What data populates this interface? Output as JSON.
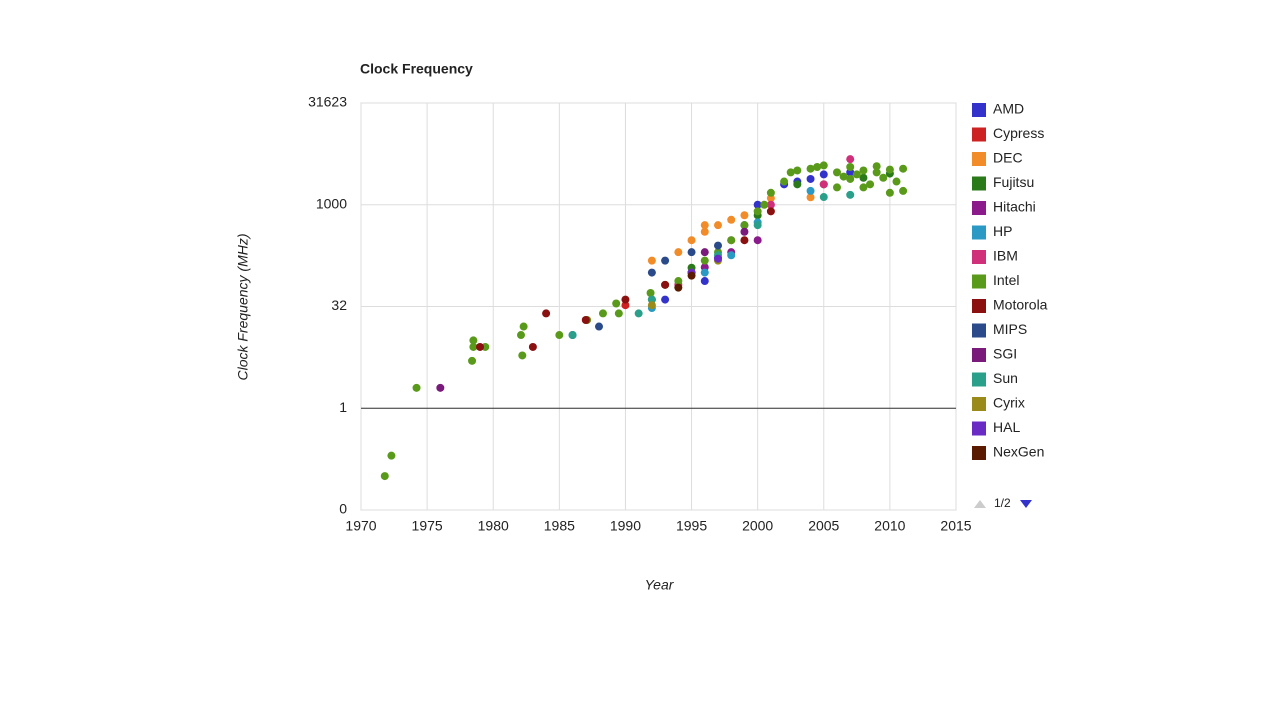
{
  "chart_data": {
    "type": "scatter",
    "title": "Clock Frequency",
    "x_label": "Year",
    "y_label": "Clock Frequency (MHz)",
    "xlim": [
      1970,
      2015
    ],
    "xticks": [
      1970,
      1975,
      1980,
      1985,
      1990,
      1995,
      2000,
      2005,
      2010,
      2015
    ],
    "ylim": [
      0.0316,
      31623
    ],
    "yticks": [
      {
        "value": 0.0316,
        "label": "0"
      },
      1,
      {
        "value": 31.62,
        "label": "32"
      },
      1000,
      31623
    ],
    "log_y": true,
    "grid": true,
    "baseline": 1,
    "legend_page": "1/2",
    "series": [
      {
        "name": "AMD",
        "color": "#3333cc",
        "x": [
          1993,
          1995,
          1996,
          1997,
          1999,
          2000,
          2002,
          2003,
          2004,
          2005,
          2007
        ],
        "values": [
          40,
          100,
          75,
          166,
          500,
          1000,
          2000,
          2200,
          2400,
          2800,
          3000
        ]
      },
      {
        "name": "Cypress",
        "color": "#cc2222",
        "x": [
          1990,
          1992
        ],
        "values": [
          33,
          40
        ]
      },
      {
        "name": "DEC",
        "color": "#f28c28",
        "x": [
          1992,
          1994,
          1995,
          1996,
          1996,
          1997,
          1998,
          1999,
          2001,
          2004
        ],
        "values": [
          150,
          200,
          300,
          500,
          400,
          500,
          600,
          700,
          1250,
          1290
        ]
      },
      {
        "name": "Fujitsu",
        "color": "#2a7a1a",
        "x": [
          1995,
          2000,
          2003,
          2005,
          2008,
          2010
        ],
        "values": [
          118,
          700,
          2000,
          2000,
          2500,
          2880
        ]
      },
      {
        "name": "Hitachi",
        "color": "#8b1a8b",
        "x": [
          1996,
          1998,
          2000
        ],
        "values": [
          120,
          200,
          300
        ]
      },
      {
        "name": "HP",
        "color": "#2a9ac4",
        "x": [
          1992,
          1996,
          1998,
          2000,
          2004
        ],
        "values": [
          30,
          100,
          180,
          550,
          1600
        ]
      },
      {
        "name": "IBM",
        "color": "#d0307a",
        "x": [
          1994,
          1998,
          2001,
          2005,
          2007
        ],
        "values": [
          66,
          300,
          1000,
          2000,
          4700
        ]
      },
      {
        "name": "Intel",
        "color": "#5a9a1a",
        "x": [
          1971.8,
          1972.3,
          1974.2,
          1978.4,
          1978.5,
          1978.5,
          1979.4,
          1982.1,
          1982.2,
          1982.3,
          1985,
          1987.1,
          1988.3,
          1989.3,
          1989.5,
          1991.9,
          1993,
          1994,
          1995,
          1996,
          1997,
          1998,
          1999,
          2000,
          2000.5,
          2001,
          2002,
          2002.5,
          2003,
          2004,
          2004.5,
          2005,
          2006,
          2006.5,
          2007,
          2007.5,
          2008,
          2008.5,
          2009,
          2009.5,
          2010,
          2010.5,
          2011,
          2011,
          2008,
          2006,
          2007,
          2009,
          2010
        ],
        "values": [
          0.1,
          0.2,
          2,
          5,
          10,
          8,
          8,
          12,
          6,
          16,
          12,
          20,
          25,
          35,
          25,
          50,
          66,
          75,
          100,
          150,
          200,
          300,
          500,
          800,
          1000,
          1500,
          2200,
          3000,
          3200,
          3400,
          3600,
          3800,
          3000,
          2600,
          2400,
          2800,
          3200,
          2000,
          3000,
          2500,
          3300,
          2200,
          3400,
          1600,
          1800,
          1800,
          3600,
          3700,
          1500
        ]
      },
      {
        "name": "Motorola",
        "color": "#8b1010",
        "x": [
          1979,
          1983,
          1984,
          1987,
          1990,
          1993,
          1995,
          1999,
          2001
        ],
        "values": [
          8,
          8,
          25,
          20,
          40,
          66,
          100,
          300,
          800
        ]
      },
      {
        "name": "MIPS",
        "color": "#2a4a8a",
        "x": [
          1986,
          1988,
          1992,
          1993,
          1995,
          1997
        ],
        "values": [
          12,
          16,
          100,
          150,
          200,
          250
        ]
      },
      {
        "name": "SGI",
        "color": "#7a1a7a",
        "x": [
          1976,
          1996,
          1999
        ],
        "values": [
          2,
          200,
          400
        ]
      },
      {
        "name": "Sun",
        "color": "#2aa08a",
        "x": [
          1986,
          1991,
          1992,
          1995,
          1997,
          2000,
          2005,
          2007
        ],
        "values": [
          12,
          25,
          40,
          100,
          180,
          500,
          1300,
          1400
        ]
      },
      {
        "name": "Cyrix",
        "color": "#9a8a1a",
        "x": [
          1992,
          1995,
          1997
        ],
        "values": [
          33,
          100,
          150
        ]
      },
      {
        "name": "HAL",
        "color": "#6a2ac4",
        "x": [
          1995,
          1997
        ],
        "values": [
          100,
          160
        ]
      },
      {
        "name": "NexGen",
        "color": "#5a1a00",
        "x": [
          1994,
          1995
        ],
        "values": [
          60,
          90
        ]
      }
    ]
  }
}
